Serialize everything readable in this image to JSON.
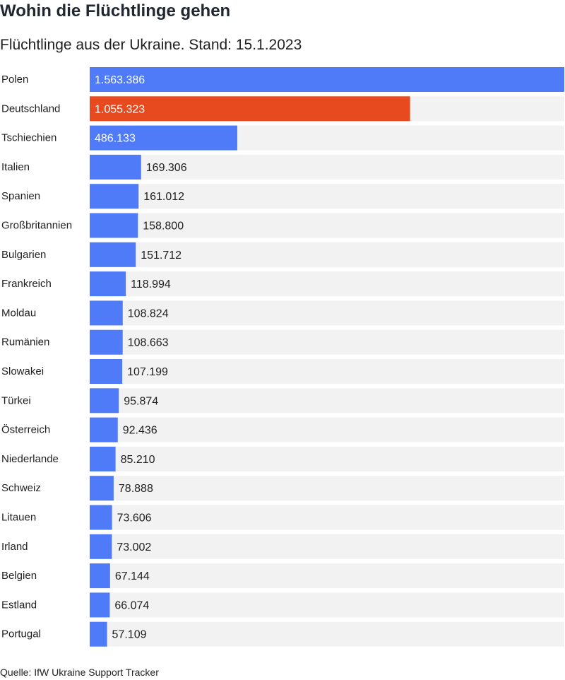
{
  "title": "Wohin die Flüchtlinge gehen",
  "subtitle": "Flüchtlinge aus der Ukraine. Stand: 15.1.2023",
  "source": "Quelle: IfW Ukraine Support Tracker",
  "colors": {
    "default_bar": "#4f7bf8",
    "highlight_bar": "#e64a1e",
    "track": "#f2f2f2",
    "label_inside": "#ffffff",
    "label_outside": "#1f1f1f"
  },
  "chart_data": {
    "type": "bar",
    "orientation": "horizontal",
    "title": "Wohin die Flüchtlinge gehen",
    "subtitle": "Flüchtlinge aus der Ukraine. Stand: 15.1.2023",
    "highlight": "Deutschland",
    "categories": [
      "Polen",
      "Deutschland",
      "Tschiechien",
      "Italien",
      "Spanien",
      "Großbritannien",
      "Bulgarien",
      "Frankreich",
      "Moldau",
      "Rumänien",
      "Slowakei",
      "Türkei",
      "Österreich",
      "Niederlande",
      "Schweiz",
      "Litauen",
      "Irland",
      "Belgien",
      "Estland",
      "Portugal"
    ],
    "values": [
      1563386,
      1055323,
      486133,
      169306,
      161012,
      158800,
      151712,
      118994,
      108824,
      108663,
      107199,
      95874,
      92436,
      85210,
      78888,
      73606,
      73002,
      67144,
      66074,
      57109
    ],
    "value_labels": [
      "1.563.386",
      "1.055.323",
      "486.133",
      "169.306",
      "161.012",
      "158.800",
      "151.712",
      "118.994",
      "108.824",
      "108.663",
      "107.199",
      "95.874",
      "92.436",
      "85.210",
      "78.888",
      "73.606",
      "73.002",
      "67.144",
      "66.074",
      "57.109"
    ],
    "xlim": [
      0,
      1563386
    ],
    "grid": false,
    "legend": "none"
  }
}
